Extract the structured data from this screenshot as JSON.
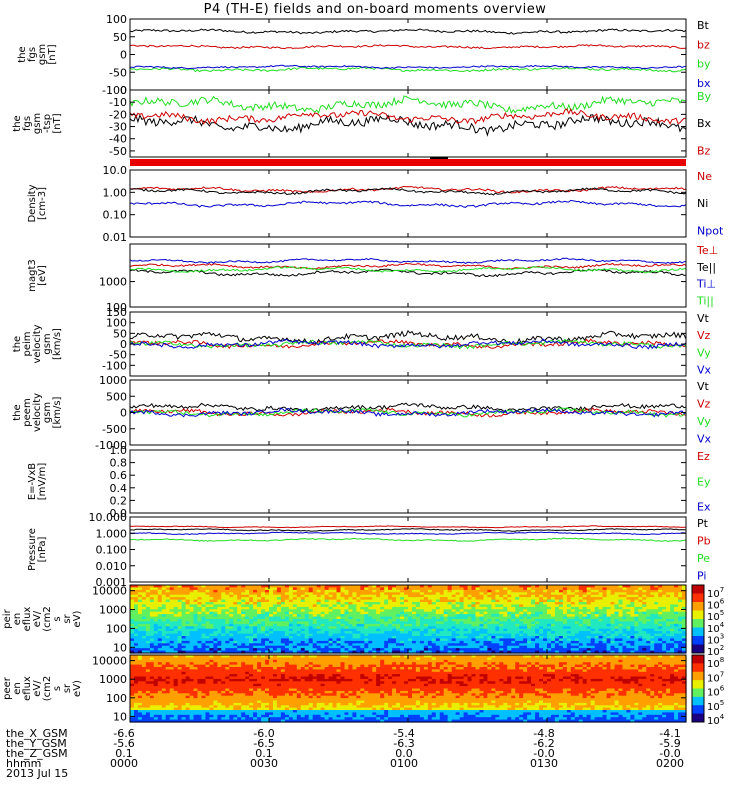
{
  "title": "P4 (TH-E) fields and on-board moments overview",
  "colors": {
    "black": "#000000",
    "red": "#cc0000",
    "green": "#22dd22",
    "blue": "#0000cc"
  },
  "chart_data": [
    {
      "type": "line",
      "panel": "fgs_gsm",
      "ylabel": "the fgs gsm [nT]",
      "ylim": [
        -100,
        100
      ],
      "yticks": [
        "100",
        "50",
        "0",
        "-50",
        "-100"
      ],
      "tickvals": [
        100,
        50,
        0,
        -50,
        -100
      ],
      "series": [
        {
          "name": "Bt",
          "color": "black",
          "base": 65,
          "noise": 6
        },
        {
          "name": "bz",
          "color": "red",
          "base": 22,
          "noise": 5
        },
        {
          "name": "by",
          "color": "green",
          "base": -42,
          "noise": 6
        },
        {
          "name": "bx",
          "color": "blue",
          "base": -35,
          "noise": 4
        }
      ]
    },
    {
      "type": "line",
      "panel": "fgs_sm",
      "ylabel": "the fgs gsm -tsp [nT]",
      "ylim": [
        -55,
        0
      ],
      "yticks": [
        "0",
        "-10",
        "-20",
        "-30",
        "-40",
        "-50"
      ],
      "tickvals": [
        0,
        -10,
        -20,
        -30,
        -40,
        -50
      ],
      "series": [
        {
          "name": "By",
          "color": "green",
          "base": -12,
          "noise": 6
        },
        {
          "name": "Bx",
          "color": "black",
          "base": -28,
          "noise": 7
        },
        {
          "name": "Bz",
          "color": "red",
          "base": -22,
          "noise": 5
        }
      ]
    },
    {
      "type": "bar",
      "panel": "mode_bar",
      "values": [
        1
      ],
      "color": "red"
    },
    {
      "type": "line",
      "panel": "density",
      "ylabel": "Density [cm-3]",
      "scale": "log",
      "ylim": [
        0.01,
        10
      ],
      "yticks": [
        "10.0",
        "1.00",
        "0.10",
        "0.01"
      ],
      "tickvals": [
        10,
        1,
        0.1,
        0.01
      ],
      "series": [
        {
          "name": "Ne",
          "color": "red",
          "base": 1.3,
          "noise": 0.15
        },
        {
          "name": "Ni",
          "color": "black",
          "base": 1.1,
          "noise": 0.15
        },
        {
          "name": "Npot",
          "color": "blue",
          "base": 0.3,
          "noise": 0.15
        }
      ]
    },
    {
      "type": "line",
      "panel": "temperature",
      "ylabel": "magt3 [eV]",
      "scale": "log",
      "ylim": [
        100,
        30000
      ],
      "yticks": [
        "1000",
        "100"
      ],
      "tickvals": [
        1000,
        100
      ],
      "series": [
        {
          "name": "Te⊥",
          "color": "red",
          "base": 4000,
          "noise": 0.12
        },
        {
          "name": "Te||",
          "color": "black",
          "base": 2200,
          "noise": 0.15
        },
        {
          "name": "Ti⊥",
          "color": "blue",
          "base": 6500,
          "noise": 0.1
        },
        {
          "name": "Ti||",
          "color": "green",
          "base": 3000,
          "noise": 0.12
        }
      ]
    },
    {
      "type": "line",
      "panel": "peim_velocity",
      "ylabel": "the peim velocity gsm [km/s]",
      "ylim": [
        -150,
        150
      ],
      "yticks": [
        "150",
        "100",
        "50",
        "0",
        "-50",
        "-100"
      ],
      "tickvals": [
        150,
        100,
        50,
        0,
        -50,
        -100
      ],
      "series": [
        {
          "name": "Vt",
          "color": "black",
          "base": 30,
          "noise": 25
        },
        {
          "name": "Vz",
          "color": "red",
          "base": 0,
          "noise": 18
        },
        {
          "name": "Vy",
          "color": "green",
          "base": 0,
          "noise": 18
        },
        {
          "name": "Vx",
          "color": "blue",
          "base": 0,
          "noise": 18
        }
      ]
    },
    {
      "type": "line",
      "panel": "peem_velocity",
      "ylabel": "the peem velocity gsm [km/s]",
      "ylim": [
        -1000,
        1000
      ],
      "yticks": [
        "1000",
        "500",
        "0",
        "-500",
        "-1000"
      ],
      "tickvals": [
        1000,
        500,
        0,
        -500,
        -1000
      ],
      "series": [
        {
          "name": "Vt",
          "color": "black",
          "base": 150,
          "noise": 120
        },
        {
          "name": "Vz",
          "color": "red",
          "base": 0,
          "noise": 110
        },
        {
          "name": "Vy",
          "color": "green",
          "base": 0,
          "noise": 110
        },
        {
          "name": "Vx",
          "color": "blue",
          "base": 0,
          "noise": 110
        }
      ]
    },
    {
      "type": "line",
      "panel": "exb",
      "ylabel": "E=-VxB [mV/m]",
      "ylim": [
        0,
        1
      ],
      "yticks": [
        "1.0",
        "0.8",
        "0.6",
        "0.4",
        "0.2",
        "0.0"
      ],
      "tickvals": [
        1,
        0.8,
        0.6,
        0.4,
        0.2,
        0
      ],
      "series": [
        {
          "name": "Ez",
          "color": "red"
        },
        {
          "name": "Ey",
          "color": "green"
        },
        {
          "name": "Ex",
          "color": "blue"
        }
      ]
    },
    {
      "type": "line",
      "panel": "pressure",
      "ylabel": "Pressure [nPa]",
      "scale": "log",
      "ylim": [
        0.001,
        10
      ],
      "yticks": [
        "10.000",
        "1.000",
        "0.100",
        "0.010",
        "0.001"
      ],
      "tickvals": [
        10,
        1,
        0.1,
        0.01,
        0.001
      ],
      "series": [
        {
          "name": "Pt",
          "color": "black",
          "base": 1.6,
          "noise": 0.08
        },
        {
          "name": "Pb",
          "color": "red",
          "base": 2.5,
          "noise": 0.06
        },
        {
          "name": "Pe",
          "color": "green",
          "base": 0.4,
          "noise": 0.1
        },
        {
          "name": "Pi",
          "color": "blue",
          "base": 1.0,
          "noise": 0.08
        }
      ]
    },
    {
      "type": "heatmap",
      "panel": "peir_spec",
      "ylabel": "the peir en eflux eV/ (cm2 s sr eV)",
      "scale": "log",
      "ylim": [
        5,
        20000
      ],
      "yticks": [
        "10000",
        "1000",
        "100",
        "10"
      ],
      "tickvals": [
        10000,
        1000,
        100,
        10
      ],
      "colorbar": {
        "ticks": [
          "10",
          "10",
          "10",
          "10",
          "10",
          "10"
        ],
        "exps": [
          "7",
          "6",
          "5",
          "4",
          "3",
          "2"
        ],
        "range": [
          2,
          7
        ]
      }
    },
    {
      "type": "heatmap",
      "panel": "peer_spec",
      "ylabel": "the peer en eflux eV/ (cm2 s sr eV)",
      "scale": "log",
      "ylim": [
        5,
        20000
      ],
      "yticks": [
        "10000",
        "1000",
        "100",
        "10"
      ],
      "tickvals": [
        10000,
        1000,
        100,
        10
      ],
      "colorbar": {
        "ticks": [
          "10",
          "10",
          "10",
          "10",
          "10"
        ],
        "exps": [
          "8",
          "7",
          "6",
          "5",
          "4"
        ],
        "range": [
          3.5,
          8
        ]
      }
    }
  ],
  "footer": {
    "labels": [
      "the_X_GSM",
      "the_Y_GSM",
      "the_Z_GSM",
      "hhmm",
      "2013 Jul 15"
    ],
    "columns": [
      {
        "x": "-6.6",
        "y": "-5.6",
        "z": "0.1",
        "t": "0000"
      },
      {
        "x": "-6.0",
        "y": "-6.5",
        "z": "0.1",
        "t": "0030"
      },
      {
        "x": "-5.4",
        "y": "-6.3",
        "z": "0.0",
        "t": "0100"
      },
      {
        "x": "-4.8",
        "y": "-6.2",
        "z": "-0.0",
        "t": "0130"
      },
      {
        "x": "-4.1",
        "y": "-5.9",
        "z": "-0.0",
        "t": "0200"
      }
    ]
  }
}
